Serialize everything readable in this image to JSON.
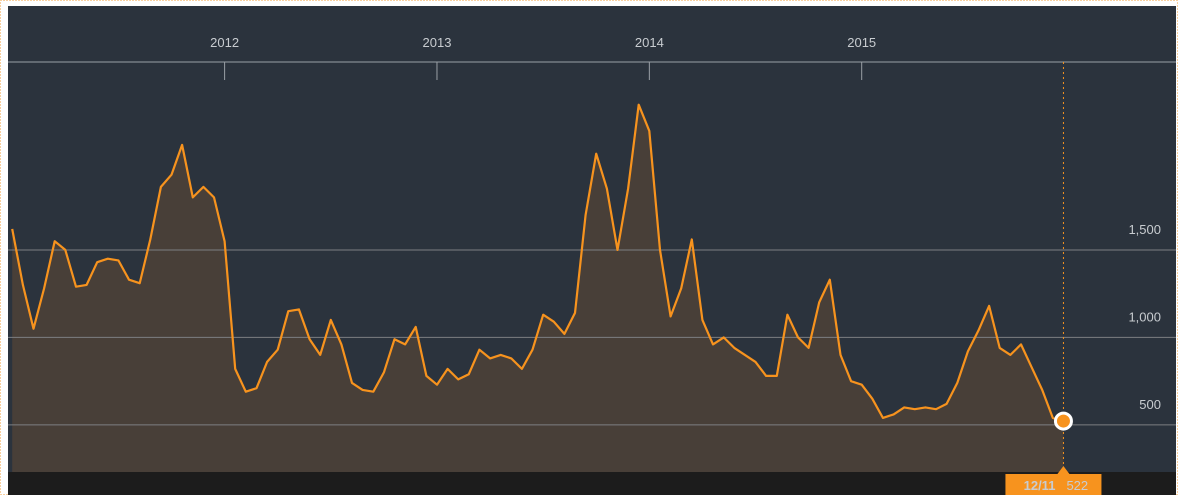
{
  "chart_data": {
    "type": "line",
    "x": [
      2011.0,
      2011.05,
      2011.1,
      2011.15,
      2011.2,
      2011.25,
      2011.3,
      2011.35,
      2011.4,
      2011.45,
      2011.5,
      2011.55,
      2011.6,
      2011.65,
      2011.7,
      2011.75,
      2011.8,
      2011.85,
      2011.9,
      2011.95,
      2012.0,
      2012.05,
      2012.1,
      2012.15,
      2012.2,
      2012.25,
      2012.3,
      2012.35,
      2012.4,
      2012.45,
      2012.5,
      2012.55,
      2012.6,
      2012.65,
      2012.7,
      2012.75,
      2012.8,
      2012.85,
      2012.9,
      2012.95,
      2013.0,
      2013.05,
      2013.1,
      2013.15,
      2013.2,
      2013.25,
      2013.3,
      2013.35,
      2013.4,
      2013.45,
      2013.5,
      2013.55,
      2013.6,
      2013.65,
      2013.7,
      2013.75,
      2013.8,
      2013.85,
      2013.9,
      2013.95,
      2014.0,
      2014.05,
      2014.1,
      2014.15,
      2014.2,
      2014.25,
      2014.3,
      2014.35,
      2014.4,
      2014.45,
      2014.5,
      2014.55,
      2014.6,
      2014.65,
      2014.7,
      2014.75,
      2014.8,
      2014.85,
      2014.9,
      2014.95,
      2015.0,
      2015.05,
      2015.1,
      2015.15,
      2015.2,
      2015.25,
      2015.3,
      2015.35,
      2015.4,
      2015.45,
      2015.5,
      2015.55,
      2015.6,
      2015.65,
      2015.7,
      2015.75,
      2015.8,
      2015.85,
      2015.9,
      2015.95
    ],
    "series": [
      {
        "color": "#f7931e",
        "fill": "#4a4038",
        "values": [
          1620,
          1300,
          1050,
          1280,
          1550,
          1500,
          1290,
          1300,
          1430,
          1450,
          1440,
          1330,
          1310,
          1560,
          1860,
          1930,
          2100,
          1800,
          1860,
          1800,
          1550,
          820,
          690,
          710,
          860,
          930,
          1150,
          1160,
          990,
          900,
          1100,
          960,
          740,
          700,
          690,
          800,
          990,
          960,
          1060,
          780,
          730,
          820,
          760,
          790,
          930,
          880,
          900,
          880,
          820,
          930,
          1130,
          1090,
          1020,
          1140,
          1700,
          2050,
          1850,
          1500,
          1850,
          2330,
          2180,
          1500,
          1120,
          1280,
          1560,
          1100,
          960,
          1000,
          940,
          900,
          860,
          780,
          780,
          1130,
          1000,
          940,
          1200,
          1330,
          900,
          750,
          730,
          650,
          540,
          560,
          600,
          590,
          600,
          590,
          620,
          740,
          920,
          1040,
          1180,
          940,
          900,
          960,
          830,
          700,
          540,
          522
        ]
      }
    ],
    "xlim": [
      2010.98,
      2016.48
    ],
    "xticks": [
      2012,
      2013,
      2014,
      2015
    ],
    "ylim": [
      231,
      2574
    ],
    "yticks": [
      500,
      {
        "value": 1000,
        "label": "1,000"
      },
      {
        "value": 1500,
        "label": "1,500"
      }
    ],
    "grid": true,
    "marker_label": "12/11"
  }
}
